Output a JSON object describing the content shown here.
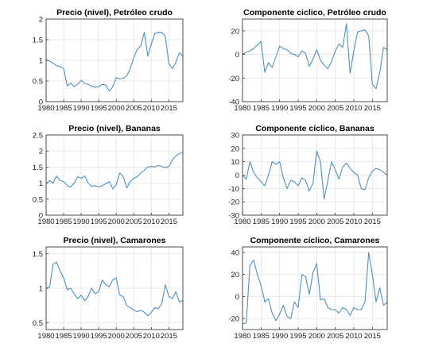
{
  "figure": {
    "line_color": "#4f8fc0"
  },
  "chart_data": [
    {
      "type": "line",
      "title": "Precio (nivel), Petróleo crudo",
      "xlabel": "",
      "ylabel": "",
      "xlim": [
        1980,
        2019
      ],
      "ylim": [
        0,
        2
      ],
      "xticks": [
        1980,
        1985,
        1990,
        1995,
        2000,
        2005,
        2010,
        2015
      ],
      "yticks": [
        0,
        0.5,
        1,
        1.5,
        2
      ],
      "yticklabels": [
        "0",
        "0.5",
        "1",
        "1.5",
        "2"
      ],
      "grid": true,
      "x": [
        1980,
        1981,
        1982,
        1983,
        1984,
        1985,
        1986,
        1987,
        1988,
        1989,
        1990,
        1991,
        1992,
        1993,
        1994,
        1995,
        1996,
        1997,
        1998,
        1999,
        2000,
        2001,
        2002,
        2003,
        2004,
        2005,
        2006,
        2007,
        2008,
        2009,
        2010,
        2011,
        2012,
        2013,
        2014,
        2015,
        2016,
        2017,
        2018,
        2019
      ],
      "series": [
        {
          "values": [
            1.02,
            0.98,
            0.93,
            0.87,
            0.85,
            0.8,
            0.38,
            0.45,
            0.36,
            0.42,
            0.52,
            0.44,
            0.42,
            0.37,
            0.35,
            0.36,
            0.42,
            0.4,
            0.26,
            0.36,
            0.58,
            0.55,
            0.57,
            0.62,
            0.8,
            1.07,
            1.27,
            1.35,
            1.68,
            1.1,
            1.4,
            1.65,
            1.68,
            1.68,
            1.58,
            0.92,
            0.8,
            0.95,
            1.18,
            1.1
          ]
        }
      ]
    },
    {
      "type": "line",
      "title": "Componente ciclico, Petróleo crudo",
      "xlabel": "",
      "ylabel": "",
      "xlim": [
        1980,
        2019
      ],
      "ylim": [
        -40,
        30
      ],
      "xticks": [
        1980,
        1985,
        1990,
        1995,
        2000,
        2005,
        2010,
        2015
      ],
      "yticks": [
        -40,
        -20,
        0,
        20
      ],
      "yticklabels": [
        "-40",
        "-20",
        "0",
        "20"
      ],
      "grid": true,
      "x": [
        1980,
        1981,
        1982,
        1983,
        1984,
        1985,
        1986,
        1987,
        1988,
        1989,
        1990,
        1991,
        1992,
        1993,
        1994,
        1995,
        1996,
        1997,
        1998,
        1999,
        2000,
        2001,
        2002,
        2003,
        2004,
        2005,
        2006,
        2007,
        2008,
        2009,
        2010,
        2011,
        2012,
        2013,
        2014,
        2015,
        2016,
        2017,
        2018,
        2019
      ],
      "series": [
        {
          "values": [
            0,
            2,
            3,
            5,
            8,
            11,
            -15,
            -7,
            -11,
            -2,
            7,
            5,
            4,
            1,
            0,
            -2,
            3,
            1,
            -10,
            -4,
            4,
            -5,
            -9,
            -12,
            -6,
            3,
            9,
            6,
            26,
            -16,
            3,
            19,
            20,
            21,
            16,
            -25,
            -29,
            -15,
            6,
            4
          ]
        }
      ]
    },
    {
      "type": "line",
      "title": "Precio (nivel), Bananas",
      "xlabel": "",
      "ylabel": "",
      "xlim": [
        1980,
        2019
      ],
      "ylim": [
        0,
        2.5
      ],
      "xticks": [
        1980,
        1985,
        1990,
        1995,
        2000,
        2005,
        2010,
        2015
      ],
      "yticks": [
        0,
        0.5,
        1,
        1.5,
        2,
        2.5
      ],
      "yticklabels": [
        "0",
        "0.5",
        "1",
        "1.5",
        "2",
        "2.5"
      ],
      "grid": true,
      "x": [
        1980,
        1981,
        1982,
        1983,
        1984,
        1985,
        1986,
        1987,
        1988,
        1989,
        1990,
        1991,
        1992,
        1993,
        1994,
        1995,
        1996,
        1997,
        1998,
        1999,
        2000,
        2001,
        2002,
        2003,
        2004,
        2005,
        2006,
        2007,
        2008,
        2009,
        2010,
        2011,
        2012,
        2013,
        2014,
        2015,
        2016,
        2017,
        2018,
        2019
      ],
      "series": [
        {
          "values": [
            0.98,
            1.08,
            1.0,
            1.22,
            1.08,
            1.05,
            0.92,
            0.88,
            1.0,
            1.2,
            1.15,
            1.22,
            1.0,
            0.9,
            0.92,
            0.88,
            0.92,
            0.98,
            1.05,
            0.82,
            0.95,
            1.32,
            1.2,
            0.85,
            1.05,
            1.15,
            1.2,
            1.32,
            1.4,
            1.5,
            1.52,
            1.5,
            1.55,
            1.52,
            1.48,
            1.52,
            1.72,
            1.85,
            1.92,
            1.95
          ]
        }
      ]
    },
    {
      "type": "line",
      "title": "Componente cíclico, Bananas",
      "xlabel": "",
      "ylabel": "",
      "xlim": [
        1980,
        2019
      ],
      "ylim": [
        -30,
        30
      ],
      "xticks": [
        1980,
        1985,
        1990,
        1995,
        2000,
        2005,
        2010,
        2015
      ],
      "yticks": [
        -30,
        -20,
        -10,
        0,
        10,
        20,
        30
      ],
      "yticklabels": [
        "-30",
        "-20",
        "-10",
        "0",
        "10",
        "20",
        "30"
      ],
      "grid": true,
      "x": [
        1980,
        1981,
        1982,
        1983,
        1984,
        1985,
        1986,
        1987,
        1988,
        1989,
        1990,
        1991,
        1992,
        1993,
        1994,
        1995,
        1996,
        1997,
        1998,
        1999,
        2000,
        2001,
        2002,
        2003,
        2004,
        2005,
        2006,
        2007,
        2008,
        2009,
        2010,
        2011,
        2012,
        2013,
        2014,
        2015,
        2016,
        2017,
        2018,
        2019
      ],
      "series": [
        {
          "values": [
            0,
            -3,
            10,
            2,
            -2,
            -5,
            -8,
            0,
            10,
            8,
            10,
            -2,
            -10,
            -4,
            -5,
            -8,
            -2,
            -4,
            -12,
            -6,
            18,
            10,
            -18,
            -4,
            10,
            4,
            -3,
            6,
            9,
            5,
            2,
            0,
            -10,
            -11,
            -2,
            3,
            5,
            4,
            2,
            0
          ]
        }
      ]
    },
    {
      "type": "line",
      "title": "Precio (nivel), Camarones",
      "xlabel": "",
      "ylabel": "",
      "xlim": [
        1980,
        2019
      ],
      "ylim": [
        0.4,
        1.6
      ],
      "xticks": [
        1980,
        1985,
        1990,
        1995,
        2000,
        2005,
        2010,
        2015
      ],
      "yticks": [
        0.5,
        1,
        1.5
      ],
      "yticklabels": [
        "0.5",
        "1",
        "1.5"
      ],
      "grid": true,
      "x": [
        1980,
        1981,
        1982,
        1983,
        1984,
        1985,
        1986,
        1987,
        1988,
        1989,
        1990,
        1991,
        1992,
        1993,
        1994,
        1995,
        1996,
        1997,
        1998,
        1999,
        2000,
        2001,
        2002,
        2003,
        2004,
        2005,
        2006,
        2007,
        2008,
        2009,
        2010,
        2011,
        2012,
        2013,
        2014,
        2015,
        2016,
        2017,
        2018,
        2019
      ],
      "series": [
        {
          "values": [
            1.0,
            1.02,
            1.35,
            1.38,
            1.25,
            1.15,
            0.98,
            1.0,
            0.92,
            0.85,
            0.9,
            0.82,
            0.88,
            1.0,
            0.92,
            0.95,
            1.12,
            1.05,
            1.02,
            1.12,
            1.15,
            0.9,
            0.88,
            0.75,
            0.72,
            0.68,
            0.66,
            0.68,
            0.65,
            0.6,
            0.65,
            0.72,
            0.7,
            0.78,
            1.05,
            0.88,
            0.85,
            0.95,
            0.8,
            0.82
          ]
        }
      ]
    },
    {
      "type": "line",
      "title": "Componente cíclico, Camarones",
      "xlabel": "",
      "ylabel": "",
      "xlim": [
        1980,
        2019
      ],
      "ylim": [
        -30,
        45
      ],
      "xticks": [
        1980,
        1985,
        1990,
        1995,
        2000,
        2005,
        2010,
        2015
      ],
      "yticks": [
        -20,
        0,
        20,
        40
      ],
      "yticklabels": [
        "-20",
        "0",
        "20",
        "40"
      ],
      "grid": true,
      "x": [
        1980,
        1981,
        1982,
        1983,
        1984,
        1985,
        1986,
        1987,
        1988,
        1989,
        1990,
        1991,
        1992,
        1993,
        1994,
        1995,
        1996,
        1997,
        1998,
        1999,
        2000,
        2001,
        2002,
        2003,
        2004,
        2005,
        2006,
        2007,
        2008,
        2009,
        2010,
        2011,
        2012,
        2013,
        2014,
        2015,
        2016,
        2017,
        2018,
        2019
      ],
      "series": [
        {
          "values": [
            -25,
            -24,
            28,
            33,
            20,
            10,
            -5,
            -2,
            -15,
            -22,
            -16,
            -8,
            -18,
            -20,
            -5,
            -10,
            20,
            18,
            2,
            22,
            30,
            -3,
            -2,
            -10,
            -12,
            -12,
            -15,
            -10,
            -12,
            -17,
            -10,
            -12,
            -12,
            -5,
            40,
            20,
            -5,
            8,
            -8,
            -5
          ]
        }
      ]
    }
  ]
}
